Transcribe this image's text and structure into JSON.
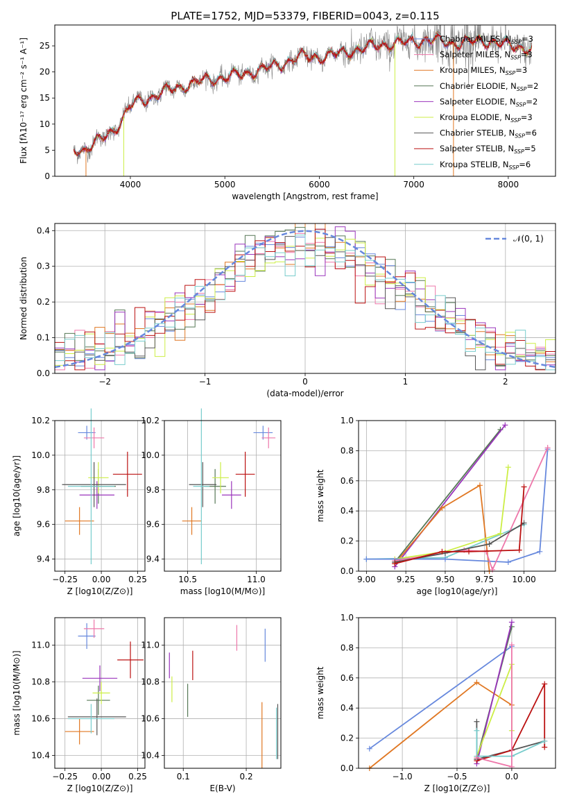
{
  "colors": {
    "c0": "#6688dd",
    "c1": "#e07722",
    "c2": "#557755",
    "c3": "#9933bb",
    "c4": "#ccee44",
    "c5": "#555555",
    "c6": "#bb1111",
    "c7": "#77cccc",
    "c8": "#ee77aa"
  },
  "chart_data": [
    {
      "type": "line",
      "title": "PLATE=1752, MJD=53379, FIBERID=0043, z=0.115",
      "xlabel": "wavelength [Angstrom, rest frame]",
      "ylabel": "Flux [fλ10⁻¹⁷ erg cm⁻² s⁻¹ A⁻¹]",
      "xlim": [
        3200,
        8500
      ],
      "ylim": [
        0,
        29
      ],
      "xticks": [
        4000,
        5000,
        6000,
        7000,
        8000
      ],
      "yticks": [
        0,
        5,
        10,
        15,
        20,
        25
      ],
      "grid": false,
      "legend": "upper right",
      "continuum_nodes": {
        "x": [
          3400,
          3500,
          3600,
          3700,
          3800,
          3900,
          4000,
          4100,
          4200,
          4400,
          4600,
          4800,
          5000,
          5200,
          5400,
          5600,
          5800,
          6000,
          6200,
          6400,
          6600,
          6800,
          7000,
          7200,
          7400,
          7600,
          7800,
          8000,
          8250
        ],
        "y": [
          5.3,
          5.0,
          6.0,
          7.2,
          8.5,
          10.5,
          13.5,
          14.5,
          15.0,
          16.5,
          17.5,
          18.5,
          19.0,
          19.6,
          20.5,
          21.5,
          23.0,
          22.8,
          23.5,
          24.3,
          25.0,
          25.5,
          25.8,
          26.2,
          25.5,
          25.8,
          26.0,
          25.0,
          24.5
        ]
      },
      "series": [
        {
          "name": "Chabrier MILES, N_SSP=3",
          "color_key": "c0"
        },
        {
          "name": "Salpeter MILES, N_SSP=3",
          "color_key": "c8"
        },
        {
          "name": "Kroupa MILES, N_SSP=3",
          "color_key": "c1"
        },
        {
          "name": "Chabrier ELODIE, N_SSP=2",
          "color_key": "c2"
        },
        {
          "name": "Salpeter ELODIE, N_SSP=2",
          "color_key": "c3"
        },
        {
          "name": "Kroupa ELODIE, N_SSP=3",
          "color_key": "c4"
        },
        {
          "name": "Chabrier STELIB, N_SSP=6",
          "color_key": "c5"
        },
        {
          "name": "Salpeter STELIB, N_SSP=5",
          "color_key": "c6"
        },
        {
          "name": "Kroupa STELIB, N_SSP=6",
          "color_key": "c7"
        }
      ],
      "drop_lines": [
        {
          "x": 3530,
          "color_key": "c1"
        },
        {
          "x": 3930,
          "color_key": "c4"
        },
        {
          "x": 6800,
          "color_key": "c4"
        },
        {
          "x": 7420,
          "color_key": "c1"
        }
      ]
    },
    {
      "type": "step",
      "xlabel": "(data-model)/error",
      "ylabel": "Normed distribution",
      "xlim": [
        -2.5,
        2.5
      ],
      "ylim": [
        0,
        0.42
      ],
      "xticks": [
        -2,
        -1,
        0,
        1,
        2
      ],
      "yticks": [
        0.0,
        0.1,
        0.2,
        0.3,
        0.4
      ],
      "grid": true,
      "bin_width": 0.1,
      "reference_curve": {
        "name": "𝒩(0, 1)",
        "style": "dashed",
        "color_key": "c0"
      },
      "legend": "upper right"
    },
    {
      "type": "scatter",
      "xlabel": "Z [log10(Z/Z⊙)]",
      "ylabel": "age  [log10(age/yr)]",
      "xlim": [
        -0.32,
        0.3
      ],
      "ylim": [
        9.33,
        10.2
      ],
      "xticks": [
        -0.25,
        0.0,
        0.25
      ],
      "yticks": [
        9.4,
        9.6,
        9.8,
        10.0,
        10.2
      ],
      "grid": true,
      "points": [
        {
          "color_key": "c0",
          "x": -0.1,
          "xerr": 0.06,
          "y": 10.13,
          "yerr": 0.04
        },
        {
          "color_key": "c8",
          "x": -0.05,
          "xerr": 0.07,
          "y": 10.1,
          "yerr": 0.06
        },
        {
          "color_key": "c1",
          "x": -0.15,
          "xerr": 0.1,
          "y": 9.62,
          "yerr": 0.08
        },
        {
          "color_key": "c2",
          "x": -0.02,
          "xerr": 0.12,
          "y": 9.82,
          "yerr": 0.1
        },
        {
          "color_key": "c3",
          "x": -0.03,
          "xerr": 0.12,
          "y": 9.77,
          "yerr": 0.08
        },
        {
          "color_key": "c4",
          "x": -0.02,
          "xerr": 0.07,
          "y": 9.87,
          "yerr": 0.09
        },
        {
          "color_key": "c5",
          "x": -0.05,
          "xerr": 0.22,
          "y": 9.83,
          "yerr": 0.13
        },
        {
          "color_key": "c6",
          "x": 0.18,
          "xerr": 0.1,
          "y": 9.89,
          "yerr": 0.13
        },
        {
          "color_key": "c7",
          "x": -0.07,
          "xerr": 0.16,
          "y": 9.82,
          "yerr": 0.45
        }
      ]
    },
    {
      "type": "scatter",
      "xlabel": "mass [log10(M/M⊙)]",
      "ylabel": "",
      "xlim": [
        10.33,
        11.18
      ],
      "ylim": [
        9.33,
        10.2
      ],
      "xticks": [
        10.5,
        11.0
      ],
      "yticks": [
        9.4,
        9.6,
        9.8,
        10.0,
        10.2
      ],
      "grid": true,
      "points": [
        {
          "color_key": "c0",
          "x": 11.05,
          "xerr": 0.07,
          "y": 10.13,
          "yerr": 0.04
        },
        {
          "color_key": "c8",
          "x": 11.09,
          "xerr": 0.05,
          "y": 10.1,
          "yerr": 0.06
        },
        {
          "color_key": "c1",
          "x": 10.53,
          "xerr": 0.07,
          "y": 9.62,
          "yerr": 0.08
        },
        {
          "color_key": "c2",
          "x": 10.7,
          "xerr": 0.08,
          "y": 9.82,
          "yerr": 0.1
        },
        {
          "color_key": "c3",
          "x": 10.82,
          "xerr": 0.07,
          "y": 9.77,
          "yerr": 0.08
        },
        {
          "color_key": "c4",
          "x": 10.74,
          "xerr": 0.06,
          "y": 9.87,
          "yerr": 0.09
        },
        {
          "color_key": "c5",
          "x": 10.61,
          "xerr": 0.1,
          "y": 9.83,
          "yerr": 0.13
        },
        {
          "color_key": "c6",
          "x": 10.92,
          "xerr": 0.07,
          "y": 9.89,
          "yerr": 0.13
        },
        {
          "color_key": "c7",
          "x": 10.6,
          "xerr": 0.06,
          "y": 9.82,
          "yerr": 0.45
        }
      ]
    },
    {
      "type": "line",
      "xlabel": "age  [log10(age/yr)]",
      "ylabel": "mass weight",
      "xlim": [
        8.95,
        10.2
      ],
      "ylim": [
        0,
        1
      ],
      "xticks": [
        9.0,
        9.25,
        9.5,
        9.75,
        10.0
      ],
      "yticks": [
        0.0,
        0.2,
        0.4,
        0.6,
        0.8,
        1.0
      ],
      "grid": true,
      "series": [
        {
          "color_key": "c7",
          "x": [
            9.0,
            9.5,
            10.0
          ],
          "y": [
            0.08,
            0.09,
            0.31
          ]
        },
        {
          "color_key": "c2",
          "x": [
            9.18,
            9.85
          ],
          "y": [
            0.06,
            0.94
          ]
        },
        {
          "color_key": "c3",
          "x": [
            9.18,
            9.88
          ],
          "y": [
            0.03,
            0.97
          ]
        },
        {
          "color_key": "c1",
          "x": [
            9.18,
            9.48,
            9.72,
            9.78
          ],
          "y": [
            0.05,
            0.42,
            0.57,
            0.0
          ]
        },
        {
          "color_key": "c4",
          "x": [
            9.18,
            9.5,
            9.85,
            9.9
          ],
          "y": [
            0.08,
            0.13,
            0.25,
            0.69
          ]
        },
        {
          "color_key": "c0",
          "x": [
            9.0,
            9.5,
            9.9,
            10.1,
            10.15
          ],
          "y": [
            0.08,
            0.08,
            0.06,
            0.13,
            0.81
          ]
        },
        {
          "color_key": "c8",
          "x": [
            9.18,
            9.62,
            9.76,
            9.8,
            10.15
          ],
          "y": [
            0.07,
            0.14,
            0.13,
            0.01,
            0.82
          ]
        },
        {
          "color_key": "c5",
          "x": [
            9.18,
            9.5,
            9.78,
            10.0
          ],
          "y": [
            0.06,
            0.12,
            0.18,
            0.32
          ]
        },
        {
          "color_key": "c6",
          "x": [
            9.18,
            9.48,
            9.65,
            9.97,
            10.0
          ],
          "y": [
            0.05,
            0.13,
            0.13,
            0.14,
            0.56
          ]
        }
      ]
    },
    {
      "type": "scatter",
      "xlabel": "Z [log10(Z/Z⊙)]",
      "ylabel": "mass [log10(M/M⊙)]",
      "xlim": [
        -0.32,
        0.3
      ],
      "ylim": [
        10.33,
        11.15
      ],
      "xticks": [
        -0.25,
        0.0,
        0.25
      ],
      "yticks": [
        10.4,
        10.6,
        10.8,
        11.0
      ],
      "grid": true,
      "points": [
        {
          "color_key": "c0",
          "x": -0.1,
          "xerr": 0.06,
          "y": 11.05,
          "yerr": 0.07
        },
        {
          "color_key": "c8",
          "x": -0.05,
          "xerr": 0.07,
          "y": 11.09,
          "yerr": 0.05
        },
        {
          "color_key": "c1",
          "x": -0.15,
          "xerr": 0.1,
          "y": 10.53,
          "yerr": 0.07
        },
        {
          "color_key": "c2",
          "x": -0.02,
          "xerr": 0.08,
          "y": 10.7,
          "yerr": 0.08
        },
        {
          "color_key": "c3",
          "x": -0.01,
          "xerr": 0.12,
          "y": 10.82,
          "yerr": 0.07
        },
        {
          "color_key": "c4",
          "x": 0.0,
          "xerr": 0.06,
          "y": 10.74,
          "yerr": 0.06
        },
        {
          "color_key": "c5",
          "x": -0.03,
          "xerr": 0.2,
          "y": 10.61,
          "yerr": 0.1
        },
        {
          "color_key": "c6",
          "x": 0.2,
          "xerr": 0.09,
          "y": 10.92,
          "yerr": 0.1
        },
        {
          "color_key": "c7",
          "x": -0.07,
          "xerr": 0.16,
          "y": 10.6,
          "yerr": 0.08
        }
      ]
    },
    {
      "type": "scatter",
      "xlabel": "E(B-V)",
      "ylabel": "",
      "xlim": [
        0.07,
        0.255
      ],
      "ylim": [
        10.33,
        11.15
      ],
      "xticks": [
        0.1,
        0.2
      ],
      "yticks": [
        10.4,
        10.6,
        10.8,
        11.0
      ],
      "grid": true,
      "points": [
        {
          "color_key": "c0",
          "x": 0.23,
          "y": 11.0,
          "yerr": 0.09
        },
        {
          "color_key": "c8",
          "x": 0.185,
          "y": 11.04,
          "yerr": 0.07
        },
        {
          "color_key": "c1",
          "x": 0.225,
          "y": 10.51,
          "yerr": 0.18
        },
        {
          "color_key": "c2",
          "x": 0.107,
          "y": 10.7,
          "yerr": 0.09
        },
        {
          "color_key": "c3",
          "x": 0.078,
          "y": 10.89,
          "yerr": 0.07
        },
        {
          "color_key": "c4",
          "x": 0.082,
          "y": 10.76,
          "yerr": 0.07
        },
        {
          "color_key": "c5",
          "x": 0.25,
          "y": 10.53,
          "yerr": 0.15
        },
        {
          "color_key": "c6",
          "x": 0.115,
          "y": 10.89,
          "yerr": 0.08
        },
        {
          "color_key": "c7",
          "x": 0.248,
          "y": 10.52,
          "yerr": 0.14
        }
      ]
    },
    {
      "type": "line",
      "xlabel": "Z [log10(Z/Z⊙)]",
      "ylabel": "mass weight",
      "xlim": [
        -1.4,
        0.4
      ],
      "ylim": [
        0,
        1
      ],
      "xticks": [
        -1.0,
        -0.5,
        0.0
      ],
      "yticks": [
        0.0,
        0.2,
        0.4,
        0.6,
        0.8,
        1.0
      ],
      "grid": true,
      "series": [
        {
          "color_key": "c0",
          "x": [
            -1.3,
            0.0
          ],
          "y": [
            0.13,
            0.81
          ]
        },
        {
          "color_key": "c1",
          "x": [
            -1.3,
            -0.32,
            0.0
          ],
          "y": [
            0.0,
            0.57,
            0.42
          ]
        },
        {
          "color_key": "c2",
          "x": [
            -0.32,
            0.0
          ],
          "y": [
            0.06,
            0.94
          ]
        },
        {
          "color_key": "c3",
          "x": [
            -0.32,
            0.0
          ],
          "y": [
            0.03,
            0.97
          ]
        },
        {
          "color_key": "c4",
          "x": [
            -0.32,
            0.0,
            0.0
          ],
          "y": [
            0.08,
            0.69,
            0.25
          ]
        },
        {
          "color_key": "c5",
          "x": [
            -0.32,
            -0.32,
            0.0,
            0.3
          ],
          "y": [
            0.31,
            0.06,
            0.12,
            0.18
          ]
        },
        {
          "color_key": "c6",
          "x": [
            -0.32,
            0.0,
            0.3,
            0.3
          ],
          "y": [
            0.05,
            0.12,
            0.56,
            0.14
          ]
        },
        {
          "color_key": "c7",
          "x": [
            -0.32,
            -0.32,
            0.0,
            0.3
          ],
          "y": [
            0.25,
            0.08,
            0.08,
            0.18
          ]
        },
        {
          "color_key": "c8",
          "x": [
            -0.32,
            0.0,
            0.0
          ],
          "y": [
            0.07,
            0.01,
            0.82
          ]
        }
      ]
    }
  ]
}
